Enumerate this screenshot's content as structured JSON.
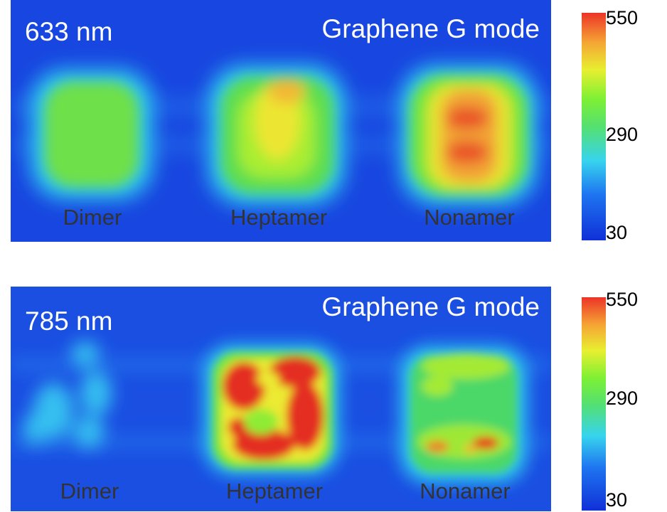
{
  "colors": {
    "background": "#1846e0",
    "colormap": [
      "#1030d8",
      "#1e74f0",
      "#37d4ee",
      "#55e070",
      "#7df034",
      "#e8ef30",
      "#f5a535",
      "#ec3427"
    ]
  },
  "chart_data": [
    {
      "type": "heatmap",
      "title": "Graphene G mode",
      "wavelength": "633 nm",
      "categories": [
        "Dimer",
        "Heptamer",
        "Nonamer"
      ],
      "colorbar": {
        "min": 30,
        "mid": 290,
        "max": 550,
        "ticks": [
          "550",
          "290",
          "30"
        ]
      },
      "approx_peak_intensity": [
        250,
        380,
        470
      ]
    },
    {
      "type": "heatmap",
      "title": "Graphene G mode",
      "wavelength": "785 nm",
      "categories": [
        "Dimer",
        "Heptamer",
        "Nonamer"
      ],
      "colorbar": {
        "min": 30,
        "mid": 290,
        "max": 550,
        "ticks": [
          "550",
          "290",
          "30"
        ]
      },
      "approx_peak_intensity": [
        130,
        550,
        520
      ]
    }
  ]
}
